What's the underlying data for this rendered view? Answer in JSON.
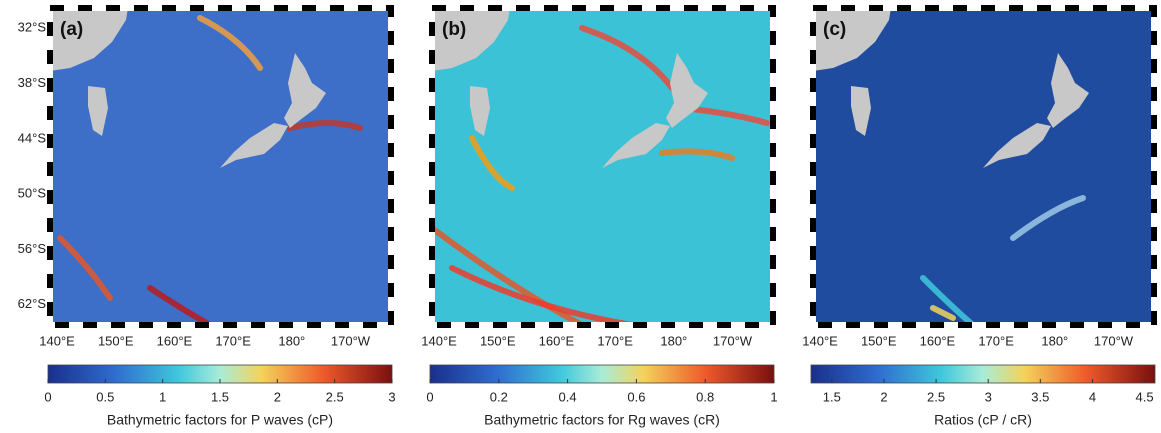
{
  "map": {
    "lat_lim": [
      -29.8,
      -64.2
    ],
    "lat_ticks": [
      {
        "value": -32,
        "label": "32°S"
      },
      {
        "value": -38,
        "label": "38°S"
      },
      {
        "value": -44,
        "label": "44°S"
      },
      {
        "value": -50,
        "label": "50°S"
      },
      {
        "value": -56,
        "label": "56°S"
      },
      {
        "value": -62,
        "label": "62°S"
      }
    ],
    "lon_lim": [
      138.8,
      196.9
    ],
    "lon_ticks": [
      {
        "value": 140,
        "label": "140°E"
      },
      {
        "value": 150,
        "label": "150°E"
      },
      {
        "value": 160,
        "label": "160°E"
      },
      {
        "value": 170,
        "label": "170°E"
      },
      {
        "value": 180,
        "label": "180°"
      },
      {
        "value": 190,
        "label": "170°W"
      }
    ]
  },
  "panels": [
    {
      "label": "(a)",
      "colorbar": {
        "lim": [
          0,
          3
        ],
        "ticks": [
          0,
          0.5,
          1,
          1.5,
          2,
          2.5,
          3
        ],
        "label": "Bathymetric factors for P waves (cP)"
      }
    },
    {
      "label": "(b)",
      "colorbar": {
        "lim": [
          0,
          1
        ],
        "ticks": [
          0,
          0.2,
          0.4,
          0.6,
          0.8,
          1
        ],
        "label": "Bathymetric factors for Rg waves (cR)"
      }
    },
    {
      "label": "(c)",
      "colorbar": {
        "lim": [
          1.3,
          4.6
        ],
        "ticks": [
          1.5,
          2,
          2.5,
          3,
          3.5,
          4,
          4.5
        ],
        "label": "Ratios (cP / cR)"
      }
    }
  ]
}
